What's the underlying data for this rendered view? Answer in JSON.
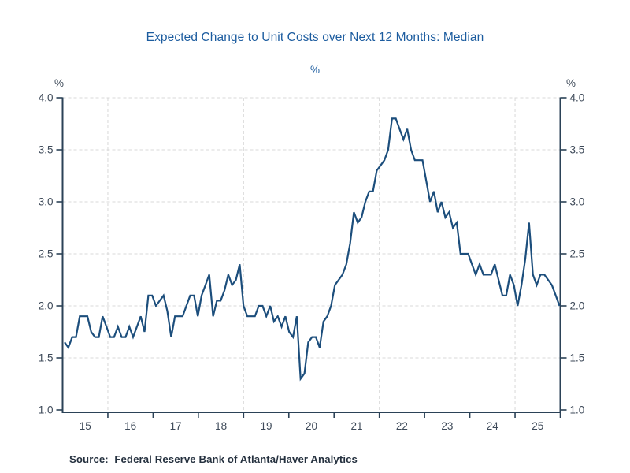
{
  "chart": {
    "title": "Expected Change to Unit Costs over Next 12 Months: Median",
    "unit_label_center": "%",
    "unit_label_left": "%",
    "unit_label_right": "%",
    "source": "Source:  Federal Reserve Bank of Atlanta/Haver Analytics",
    "colors": {
      "line": "#1C4E7C",
      "title": "#1C5C9F",
      "axis": "#2B4257",
      "tick_label": "#3E4A59",
      "grid": "#D8D8D8",
      "source_text": "#25313F",
      "background": "#FFFFFF"
    }
  },
  "chart_data": {
    "type": "line",
    "title": "Expected Change to Unit Costs over Next 12 Months: Median",
    "xlabel": "",
    "ylabel": "%",
    "ylim": [
      1.0,
      4.0
    ],
    "yticks": [
      4.0,
      3.5,
      3.0,
      2.5,
      2.0,
      1.5,
      1.0
    ],
    "grid_horizontal": [
      1.5,
      2.0,
      2.5,
      3.0,
      3.5,
      4.0
    ],
    "x_year_labels": [
      "15",
      "16",
      "17",
      "18",
      "19",
      "20",
      "21",
      "22",
      "23",
      "24",
      "25"
    ],
    "vertical_gridline_years": [
      "16",
      "19",
      "22",
      "25"
    ],
    "legend": "none",
    "series": [
      {
        "name": "Expected change to unit costs over next 12 months, median",
        "frequency": "monthly",
        "start": "2015-01",
        "end": "2025-11",
        "values": [
          1.65,
          1.6,
          1.7,
          1.7,
          1.9,
          1.9,
          1.9,
          1.75,
          1.7,
          1.7,
          1.9,
          1.8,
          1.7,
          1.7,
          1.8,
          1.7,
          1.7,
          1.8,
          1.7,
          1.8,
          1.9,
          1.75,
          2.1,
          2.1,
          2.0,
          2.05,
          2.1,
          1.95,
          1.7,
          1.9,
          1.9,
          1.9,
          2.0,
          2.1,
          2.1,
          1.9,
          2.1,
          2.2,
          2.3,
          1.9,
          2.05,
          2.05,
          2.15,
          2.3,
          2.2,
          2.25,
          2.4,
          2.0,
          1.9,
          1.9,
          1.9,
          2.0,
          2.0,
          1.9,
          2.0,
          1.85,
          1.9,
          1.8,
          1.9,
          1.75,
          1.7,
          1.9,
          1.3,
          1.35,
          1.65,
          1.7,
          1.7,
          1.6,
          1.85,
          1.9,
          2.0,
          2.2,
          2.25,
          2.3,
          2.4,
          2.6,
          2.9,
          2.8,
          2.85,
          3.0,
          3.1,
          3.1,
          3.3,
          3.35,
          3.4,
          3.5,
          3.8,
          3.8,
          3.7,
          3.6,
          3.7,
          3.5,
          3.4,
          3.4,
          3.4,
          3.2,
          3.0,
          3.1,
          2.9,
          3.0,
          2.85,
          2.9,
          2.75,
          2.8,
          2.5,
          2.5,
          2.5,
          2.4,
          2.3,
          2.4,
          2.3,
          2.3,
          2.3,
          2.4,
          2.25,
          2.1,
          2.1,
          2.3,
          2.2,
          2.0,
          2.2,
          2.45,
          2.8,
          2.3,
          2.2,
          2.3,
          2.3,
          2.25,
          2.2,
          2.1,
          2.0
        ]
      }
    ]
  }
}
